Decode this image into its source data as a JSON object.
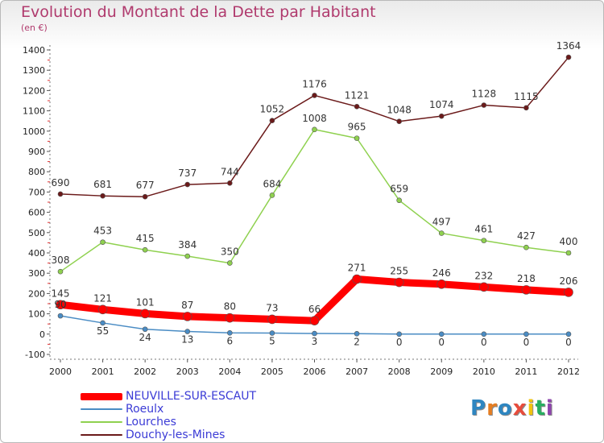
{
  "header": {
    "title": "Evolution du Montant de la Dette par Habitant",
    "subtitle": "(en €)"
  },
  "logo": {
    "text": "Proxiti",
    "letter_colors": [
      "#2e86c1",
      "#e67e22",
      "#2e86c1",
      "#e74c3c",
      "#f1c40f",
      "#27ae60",
      "#8e44ad"
    ]
  },
  "chart_data": {
    "type": "line",
    "title": "Evolution du Montant de la Dette par Habitant",
    "ylabel": "(en €)",
    "xlabel": "",
    "x": [
      "2000",
      "2001",
      "2002",
      "2003",
      "2004",
      "2005",
      "2006",
      "2007",
      "2008",
      "2009",
      "2010",
      "2011",
      "2012"
    ],
    "ylim": [
      -100,
      1400
    ],
    "yticks": [
      -100,
      0,
      100,
      200,
      300,
      400,
      500,
      600,
      700,
      800,
      900,
      1000,
      1100,
      1200,
      1300,
      1400
    ],
    "grid": false,
    "legend_position": "bottom-left",
    "series": [
      {
        "name": "NEUVILLE-SUR-ESCAUT",
        "color": "#ff0000",
        "values": [
          145,
          121,
          101,
          87,
          80,
          73,
          66,
          271,
          255,
          246,
          232,
          218,
          206
        ]
      },
      {
        "name": "Roeulx",
        "color": "#4a8cc4",
        "values": [
          90,
          55,
          24,
          13,
          6,
          5,
          3,
          2,
          0,
          0,
          0,
          0,
          0
        ]
      },
      {
        "name": "Lourches",
        "color": "#8fd14f",
        "values": [
          308,
          453,
          415,
          384,
          350,
          684,
          1008,
          965,
          659,
          497,
          461,
          427,
          400
        ]
      },
      {
        "name": "Douchy-les-Mines",
        "color": "#6b1a1a",
        "values": [
          690,
          681,
          677,
          737,
          744,
          1052,
          1176,
          1121,
          1048,
          1074,
          1128,
          1115,
          1364
        ]
      }
    ]
  }
}
